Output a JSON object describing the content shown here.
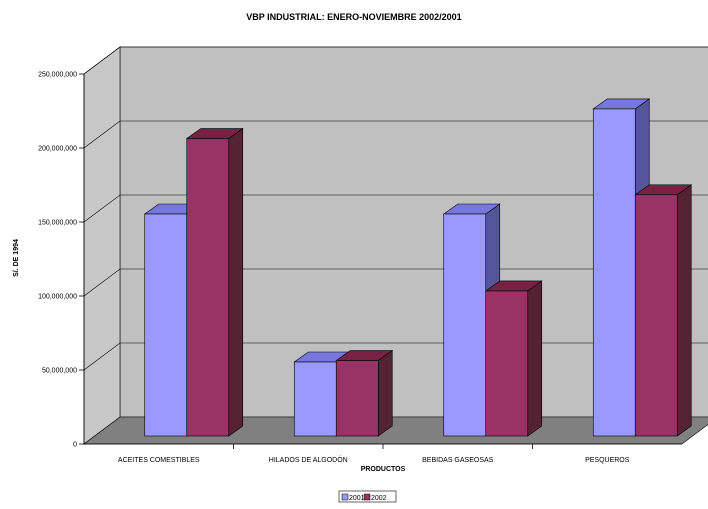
{
  "chart_data": {
    "type": "bar",
    "title": "VBP INDUSTRIAL: ENERO-NOVIEMBRE 2002/2001",
    "xlabel": "PRODUCTOS",
    "ylabel": "S/. DE 1994",
    "categories": [
      "ACEITES COMESTIBLES",
      "HILADOS DE ALGODÓN",
      "BEBIDAS GASEOSAS",
      "PESQUEROS"
    ],
    "series": [
      {
        "name": "2001",
        "values": [
          150000000,
          50000000,
          150000000,
          221000000
        ]
      },
      {
        "name": "2002",
        "values": [
          201000000,
          51000000,
          98000000,
          163000000
        ]
      }
    ],
    "ylim": [
      0,
      250000000
    ],
    "yticks": [
      "0",
      "50,000,000",
      "100,000,000",
      "150,000,000",
      "200,000,000",
      "250,000,000"
    ],
    "grid": true,
    "style": "3d",
    "legend_position": "bottom",
    "colors": {
      "series_2001_front": "#9999ff",
      "series_2001_top": "#7777dd",
      "series_2001_side": "#555599",
      "series_2002_front": "#993366",
      "series_2002_top": "#772244",
      "series_2002_side": "#552233",
      "back_wall": "#c0c0c0",
      "side_wall": "#c8c8c8",
      "floor": "#808080"
    }
  }
}
